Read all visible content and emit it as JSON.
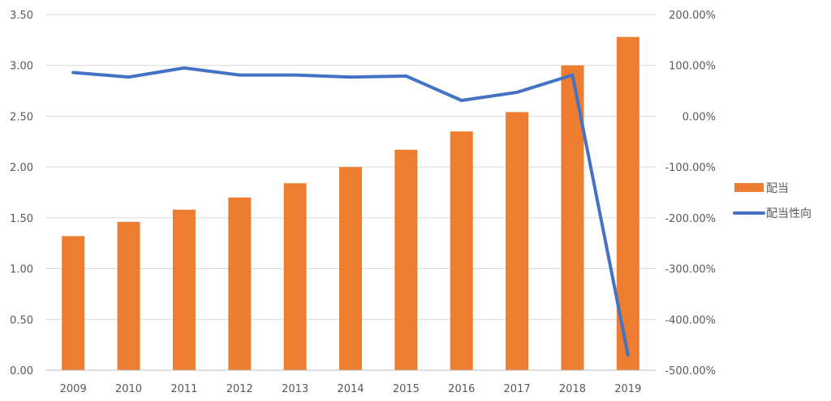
{
  "chart_data": {
    "type": "bar+line",
    "categories": [
      "2009",
      "2010",
      "2011",
      "2012",
      "2013",
      "2014",
      "2015",
      "2016",
      "2017",
      "2018",
      "2019"
    ],
    "series": [
      {
        "name": "配当",
        "type": "bar",
        "axis": "left",
        "color": "#ED7D31",
        "values": [
          1.32,
          1.46,
          1.58,
          1.7,
          1.84,
          2.0,
          2.17,
          2.35,
          2.54,
          3.0,
          3.28
        ]
      },
      {
        "name": "配当性向",
        "type": "line",
        "axis": "right",
        "color": "#4472C4",
        "values": [
          86,
          77,
          95,
          81,
          81,
          77,
          79,
          31,
          47,
          81,
          -470
        ]
      }
    ],
    "y_left": {
      "min": 0,
      "max": 3.5,
      "ticks": [
        "0.00",
        "0.50",
        "1.00",
        "1.50",
        "2.00",
        "2.50",
        "3.00",
        "3.50"
      ]
    },
    "y_right": {
      "min": -500,
      "max": 200,
      "ticks": [
        "-500.00%",
        "-400.00%",
        "-300.00%",
        "-200.00%",
        "-100.00%",
        "0.00%",
        "100.00%",
        "200.00%"
      ]
    },
    "grid": true,
    "legend_position": "right",
    "title": "",
    "xlabel": "",
    "ylabel": ""
  }
}
